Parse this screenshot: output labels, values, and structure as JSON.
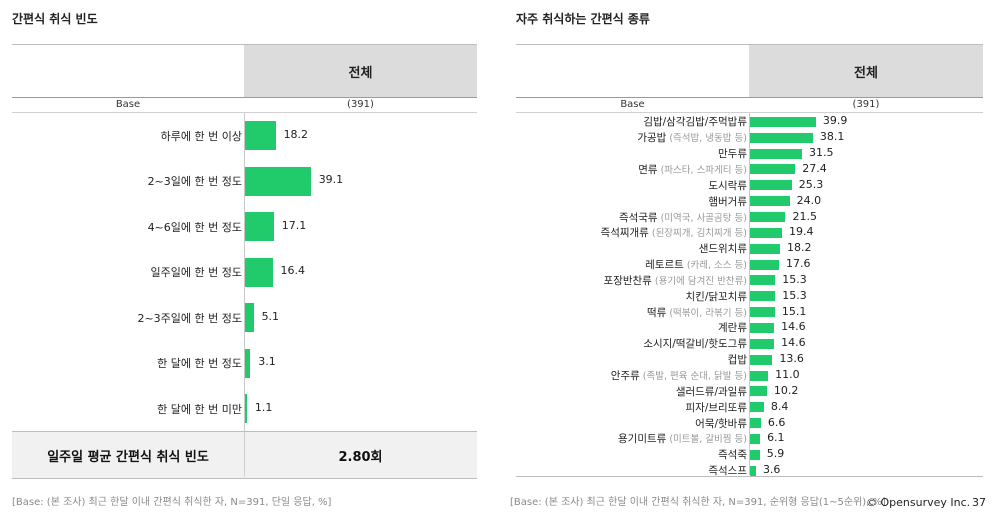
{
  "left": {
    "title": "간편식 취식 빈도",
    "column_header": "전체",
    "base_label": "Base",
    "base_count": "(391)",
    "avg_label": "일주일 평균 간편식 취식 빈도",
    "avg_value": "2.80회",
    "footnote": "[Base: (본 조사) 최근 한달 이내 간편식 취식한 자, N=391, 단일 응답, %]"
  },
  "right": {
    "title": "자주 취식하는 간편식 종류",
    "column_header": "전체",
    "base_label": "Base",
    "base_count": "(391)",
    "footnote": "[Base: (본 조사) 최근 한달 이내 간편식 취식한 자, N=391, 순위형 응답(1~5순위), %]"
  },
  "copyright": "© Opensurvey Inc.",
  "page_number": "37",
  "accent_color": "#21cb6b",
  "chart_data": [
    {
      "type": "bar",
      "orientation": "horizontal",
      "title": "간편식 취식 빈도",
      "categories": [
        "하루에 한 번 이상",
        "2~3일에 한 번 정도",
        "4~6일에 한 번 정도",
        "일주일에 한 번 정도",
        "2~3주일에 한 번 정도",
        "한 달에 한 번 정도",
        "한 달에 한 번 미만"
      ],
      "values": [
        18.2,
        39.1,
        17.1,
        16.4,
        5.1,
        3.1,
        1.1
      ],
      "value_labels": [
        "18.2",
        "39.1",
        "17.1",
        "16.4",
        "5.1",
        "3.1",
        "1.1"
      ],
      "xlim": [
        0,
        100
      ]
    },
    {
      "type": "bar",
      "orientation": "horizontal",
      "title": "자주 취식하는 간편식 종류",
      "categories": [
        {
          "main": "김밥/삼각김밥/주먹밥류",
          "sub": ""
        },
        {
          "main": "가공밥",
          "sub": "(즉석밥, 냉동밥 등)"
        },
        {
          "main": "만두류",
          "sub": ""
        },
        {
          "main": "면류",
          "sub": "(파스타, 스파게티 등)"
        },
        {
          "main": "도시락류",
          "sub": ""
        },
        {
          "main": "햄버거류",
          "sub": ""
        },
        {
          "main": "즉석국류",
          "sub": "(미역국, 사골곰탕 등)"
        },
        {
          "main": "즉석찌개류",
          "sub": "(된장찌개, 김치찌개 등)"
        },
        {
          "main": "샌드위치류",
          "sub": ""
        },
        {
          "main": "레토르트",
          "sub": "(카레, 소스 등)"
        },
        {
          "main": "포장반찬류",
          "sub": "(용기에 담겨진 반찬류)"
        },
        {
          "main": "치킨/닭꼬치류",
          "sub": ""
        },
        {
          "main": "떡류",
          "sub": "(떡볶이, 라볶기 등)"
        },
        {
          "main": "계란류",
          "sub": ""
        },
        {
          "main": "소시지/떡갈비/핫도그류",
          "sub": ""
        },
        {
          "main": "컵밥",
          "sub": ""
        },
        {
          "main": "안주류",
          "sub": "(족발, 편육 순대, 닭발 등)"
        },
        {
          "main": "샐러드류/과일류",
          "sub": ""
        },
        {
          "main": "피자/브리또류",
          "sub": ""
        },
        {
          "main": "어묵/핫바류",
          "sub": ""
        },
        {
          "main": "용기미트류",
          "sub": "(미트볼, 갈비찜 등)"
        },
        {
          "main": "즉석죽",
          "sub": ""
        },
        {
          "main": "즉석스프",
          "sub": ""
        }
      ],
      "values": [
        39.9,
        38.1,
        31.5,
        27.4,
        25.3,
        24.0,
        21.5,
        19.4,
        18.2,
        17.6,
        15.3,
        15.3,
        15.1,
        14.6,
        14.6,
        13.6,
        11.0,
        10.2,
        8.4,
        6.6,
        6.1,
        5.9,
        3.6
      ],
      "value_labels": [
        "39.9",
        "38.1",
        "31.5",
        "27.4",
        "25.3",
        "24.0",
        "21.5",
        "19.4",
        "18.2",
        "17.6",
        "15.3",
        "15.3",
        "15.1",
        "14.6",
        "14.6",
        "13.6",
        "11.0",
        "10.2",
        "8.4",
        "6.6",
        "6.1",
        "5.9",
        "3.6"
      ],
      "xlim": [
        0,
        100
      ]
    }
  ]
}
